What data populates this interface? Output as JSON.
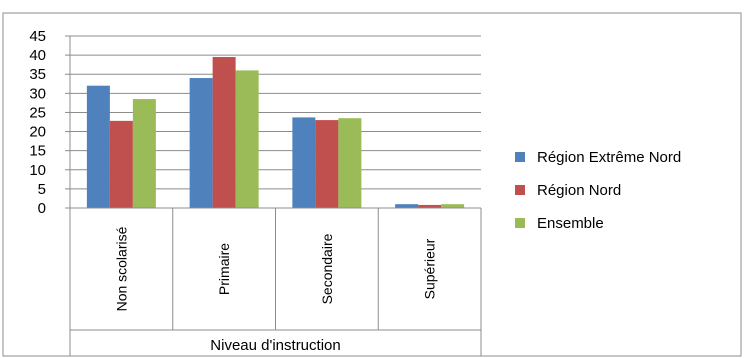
{
  "chart_data": {
    "type": "bar",
    "title": "",
    "xlabel": "Niveau d'instruction",
    "ylabel": "",
    "ylim": [
      0,
      45
    ],
    "yticks": [
      0,
      5,
      10,
      15,
      20,
      25,
      30,
      35,
      40,
      45
    ],
    "grid": true,
    "legend_position": "right",
    "categories": [
      "Non scolarisé",
      "Primaire",
      "Secondaire",
      "Supérieur"
    ],
    "series": [
      {
        "name": "Région Extrême Nord",
        "color": "#4F81BD",
        "values": [
          32.0,
          34.0,
          23.7,
          1.0
        ]
      },
      {
        "name": "Région Nord",
        "color": "#C0504D",
        "values": [
          22.8,
          39.5,
          23.0,
          0.8
        ]
      },
      {
        "name": "Ensemble",
        "color": "#9BBB59",
        "values": [
          28.5,
          36.0,
          23.5,
          1.0
        ]
      }
    ]
  }
}
